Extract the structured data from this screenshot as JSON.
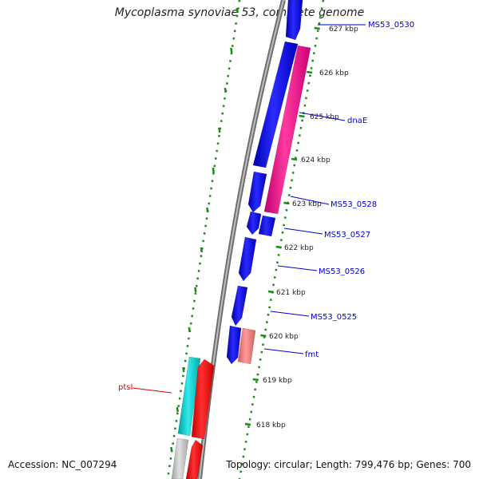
{
  "title": "Mycoplasma synoviae 53, complete genome",
  "accession": "Accession: NC_007294",
  "summary": "Topology: circular; Length: 799,476 bp; Genes: 700",
  "colors": {
    "backbone": "#808080",
    "dots": "#1a8a1a",
    "cds": "#0000ee",
    "rrna": "#ff1493",
    "trna": "#f08080",
    "cyan": "#00cccc",
    "red": "#ff0000",
    "gray": "#c0c0c0",
    "label_blue": "#0000cc",
    "label_red": "#dd0000"
  },
  "ticks": [
    {
      "label": "627 kbp"
    },
    {
      "label": "626 kbp"
    },
    {
      "label": "625 kbp"
    },
    {
      "label": "624 kbp"
    },
    {
      "label": "623 kbp"
    },
    {
      "label": "622 kbp"
    },
    {
      "label": "621 kbp"
    },
    {
      "label": "620 kbp"
    },
    {
      "label": "619 kbp"
    },
    {
      "label": "618 kbp"
    }
  ],
  "gene_labels": [
    {
      "name": "MS53_0530"
    },
    {
      "name": "dnaE"
    },
    {
      "name": "MS53_0528"
    },
    {
      "name": "MS53_0527"
    },
    {
      "name": "MS53_0526"
    },
    {
      "name": "MS53_0525"
    },
    {
      "name": "fmt"
    },
    {
      "name": "ptsI"
    }
  ]
}
